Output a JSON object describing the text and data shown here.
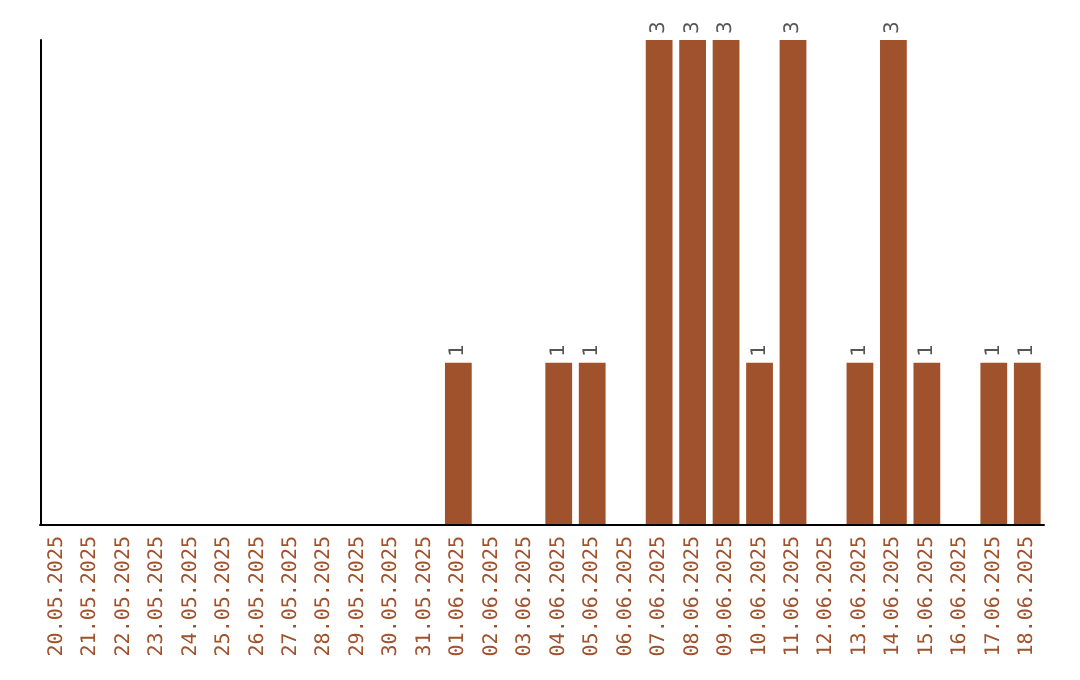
{
  "chart_data": {
    "type": "bar",
    "categories": [
      "20.05.2025",
      "21.05.2025",
      "22.05.2025",
      "23.05.2025",
      "24.05.2025",
      "25.05.2025",
      "26.05.2025",
      "27.05.2025",
      "28.05.2025",
      "29.05.2025",
      "30.05.2025",
      "31.05.2025",
      "01.06.2025",
      "02.06.2025",
      "03.06.2025",
      "04.06.2025",
      "05.06.2025",
      "06.06.2025",
      "07.06.2025",
      "08.06.2025",
      "09.06.2025",
      "10.06.2025",
      "11.06.2025",
      "12.06.2025",
      "13.06.2025",
      "14.06.2025",
      "15.06.2025",
      "16.06.2025",
      "17.06.2025",
      "18.06.2025"
    ],
    "values": [
      null,
      null,
      null,
      null,
      null,
      null,
      null,
      null,
      null,
      null,
      null,
      null,
      1,
      null,
      null,
      1,
      1,
      null,
      3,
      3,
      3,
      1,
      3,
      null,
      1,
      3,
      1,
      null,
      1,
      1
    ],
    "value_labels": [
      null,
      null,
      null,
      null,
      null,
      null,
      null,
      null,
      null,
      null,
      null,
      null,
      "1",
      null,
      null,
      "1",
      "1",
      null,
      "3",
      "3",
      "3",
      "1",
      "3",
      null,
      "1",
      "3",
      "1",
      null,
      "1",
      "1"
    ],
    "color": "#a0522d",
    "tick_labels": "x"
  }
}
